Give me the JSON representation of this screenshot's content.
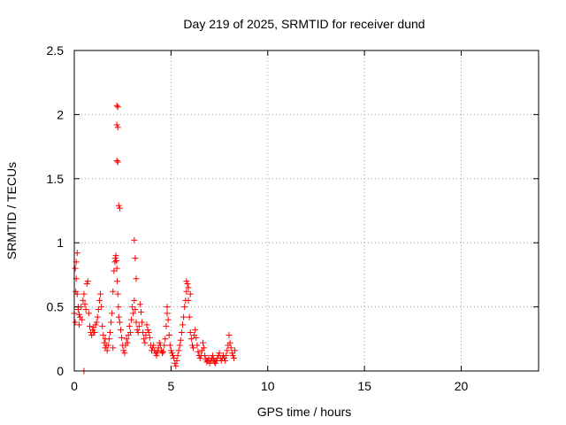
{
  "chart_data": {
    "type": "scatter",
    "title": "Day 219 of 2025, SRMTID for receiver dund",
    "xlabel": "GPS time / hours",
    "ylabel": "SRMTID / TECUs",
    "xlim": [
      0,
      24
    ],
    "ylim": [
      0,
      2.5
    ],
    "xticks": [
      0,
      5,
      10,
      15,
      20
    ],
    "yticks": [
      0,
      0.5,
      1,
      1.5,
      2,
      2.5
    ],
    "ytick_labels": [
      "0",
      "0.5",
      "1",
      "1.5",
      "2",
      "2.5"
    ],
    "grid": true,
    "marker": "+",
    "color": "#ff0000",
    "series": [
      {
        "x": [
          0.0,
          0.05,
          0.1,
          0.15,
          0.2,
          0.25,
          0.3,
          0.35,
          0.4,
          0.45,
          0.5,
          0.55,
          0.6,
          0.65,
          0.7,
          0.75,
          0.8,
          0.85,
          0.9,
          0.95,
          1.0,
          1.05,
          1.1,
          1.15,
          1.2,
          1.25,
          1.3,
          1.35,
          1.4,
          1.45,
          1.5,
          1.55,
          1.6,
          1.65,
          1.7,
          1.75,
          1.8,
          1.85,
          1.9,
          1.95,
          2.0,
          2.05,
          2.1,
          2.12,
          2.15,
          2.18,
          2.2,
          2.22,
          2.25,
          2.28,
          2.3,
          2.35,
          2.4,
          2.45,
          2.5,
          2.55,
          2.6,
          2.65,
          2.7,
          2.75,
          2.8,
          2.85,
          2.9,
          2.95,
          3.0,
          3.05,
          3.1,
          3.15,
          3.2,
          3.25,
          3.3,
          3.35,
          3.4,
          3.45,
          3.5,
          3.55,
          3.6,
          3.65,
          3.7,
          3.75,
          3.8,
          3.85,
          3.9,
          3.95,
          4.0,
          4.05,
          4.1,
          4.15,
          4.2,
          4.25,
          4.3,
          4.35,
          4.4,
          4.45,
          4.5,
          4.55,
          4.6,
          4.65,
          4.7,
          4.75,
          4.8,
          4.85,
          4.9,
          4.95,
          5.0,
          5.05,
          5.1,
          5.15,
          5.2,
          5.25,
          5.3,
          5.35,
          5.4,
          5.45,
          5.5,
          5.55,
          5.6,
          5.65,
          5.7,
          5.75,
          5.8,
          5.85,
          5.9,
          5.95,
          6.0,
          6.05,
          6.1,
          6.15,
          6.2,
          6.25,
          6.3,
          6.35,
          6.4,
          6.45,
          6.5,
          6.55,
          6.6,
          6.65,
          6.7,
          6.75,
          6.8,
          6.85,
          6.9,
          6.95,
          7.0,
          7.05,
          7.1,
          7.15,
          7.2,
          7.25,
          7.3,
          7.35,
          7.4,
          7.45,
          7.5,
          7.55,
          7.6,
          7.65,
          7.7,
          7.75,
          7.8,
          7.85,
          7.9,
          7.95,
          8.0,
          8.05,
          8.1,
          8.15,
          8.2,
          8.25,
          8.3,
          0.5,
          0.05,
          0.1,
          0.15,
          2.2,
          2.25,
          2.2,
          2.25,
          2.2,
          2.25,
          3.1,
          3.15,
          3.2,
          1.0,
          1.6,
          2.0,
          2.3,
          2.35,
          4.8,
          5.8,
          5.9,
          6.0,
          0.2,
          0.25,
          0.08
        ],
        "y": [
          0.45,
          0.38,
          0.85,
          0.92,
          0.48,
          0.36,
          0.42,
          0.5,
          0.4,
          0.55,
          0.6,
          0.52,
          0.48,
          0.68,
          0.7,
          0.45,
          0.35,
          0.3,
          0.28,
          0.32,
          0.34,
          0.3,
          0.36,
          0.38,
          0.42,
          0.48,
          0.55,
          0.6,
          0.5,
          0.35,
          0.28,
          0.22,
          0.18,
          0.2,
          0.16,
          0.2,
          0.25,
          0.3,
          0.38,
          0.45,
          0.62,
          0.78,
          0.85,
          0.88,
          0.9,
          0.86,
          0.8,
          0.7,
          0.6,
          0.5,
          0.42,
          0.38,
          0.32,
          0.26,
          0.2,
          0.16,
          0.14,
          0.2,
          0.25,
          0.22,
          0.28,
          0.35,
          0.3,
          0.4,
          0.5,
          0.45,
          0.55,
          0.48,
          0.38,
          0.32,
          0.3,
          0.35,
          0.52,
          0.46,
          0.38,
          0.3,
          0.25,
          0.22,
          0.28,
          0.36,
          0.32,
          0.3,
          0.26,
          0.2,
          0.16,
          0.18,
          0.2,
          0.16,
          0.14,
          0.12,
          0.15,
          0.18,
          0.22,
          0.2,
          0.16,
          0.14,
          0.15,
          0.2,
          0.25,
          0.35,
          0.45,
          0.4,
          0.28,
          0.2,
          0.16,
          0.14,
          0.12,
          0.1,
          0.06,
          0.04,
          0.08,
          0.12,
          0.16,
          0.2,
          0.24,
          0.3,
          0.36,
          0.42,
          0.5,
          0.55,
          0.62,
          0.68,
          0.55,
          0.42,
          0.3,
          0.25,
          0.2,
          0.18,
          0.28,
          0.32,
          0.26,
          0.2,
          0.15,
          0.12,
          0.1,
          0.12,
          0.16,
          0.22,
          0.18,
          0.12,
          0.09,
          0.07,
          0.08,
          0.1,
          0.06,
          0.08,
          0.1,
          0.12,
          0.09,
          0.07,
          0.06,
          0.08,
          0.1,
          0.12,
          0.14,
          0.1,
          0.08,
          0.1,
          0.12,
          0.1,
          0.08,
          0.12,
          0.16,
          0.2,
          0.28,
          0.22,
          0.18,
          0.14,
          0.12,
          0.1,
          0.16,
          0.0,
          0.8,
          0.72,
          0.6,
          2.07,
          2.06,
          1.92,
          1.9,
          1.64,
          1.63,
          1.02,
          0.88,
          0.72,
          0.3,
          0.25,
          0.18,
          1.29,
          1.27,
          0.5,
          0.7,
          0.65,
          0.6,
          0.5,
          0.44,
          0.62
        ]
      }
    ]
  }
}
